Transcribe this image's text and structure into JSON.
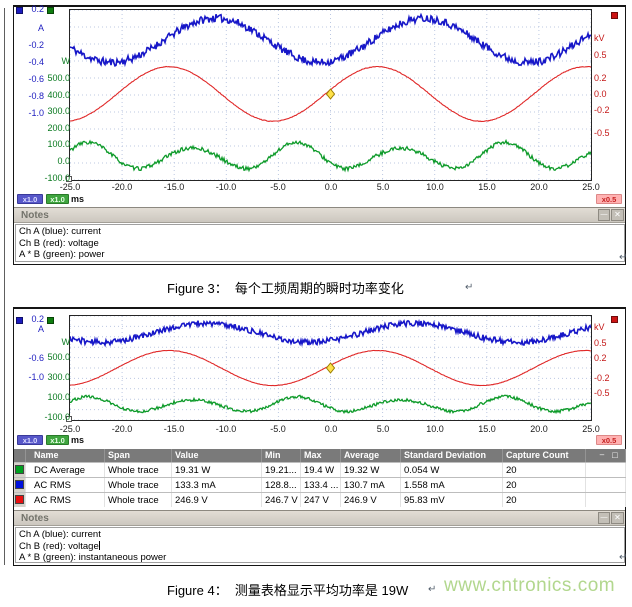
{
  "chart_data": [
    {
      "type": "line",
      "title": "PicoScope capture: instantaneous power over each mains cycle (Figure 3)",
      "x_unit": "ms",
      "x_range": [
        -25,
        25
      ],
      "x_ticks": [
        -25.0,
        -20.0,
        -15.0,
        -10.0,
        -5.0,
        0.0,
        5.0,
        10.0,
        15.0,
        20.0,
        25.0
      ],
      "axes": {
        "current": {
          "unit": "A",
          "visible_ticks": [
            0.2,
            -0.2,
            -0.4,
            -0.6,
            -0.8,
            -1.0
          ],
          "scale": "x1.0"
        },
        "power": {
          "unit": "W",
          "visible_ticks": [
            500,
            400,
            300,
            200,
            100,
            0,
            -100
          ],
          "scale": "x1.0"
        },
        "voltage": {
          "unit": "kV",
          "visible_ticks": [
            0.5,
            0.2,
            0.0,
            -0.2,
            -0.5
          ],
          "scale": "x0.5"
        }
      },
      "series": [
        {
          "name": "Ch A current (blue)",
          "axis": "current",
          "waveform": "noisy-sine",
          "offset": -0.15,
          "amplitude": 0.26,
          "period_ms": 20,
          "peak_at_ms": 9,
          "noise": 0.045,
          "color": "#1717c8"
        },
        {
          "name": "Ch B voltage (red)",
          "axis": "voltage",
          "waveform": "sine",
          "offset": 0,
          "amplitude": 0.35,
          "period_ms": 20,
          "peak_at_ms": 4.5,
          "noise": 0.004,
          "color": "#e02828"
        },
        {
          "name": "A * B power (green)",
          "axis": "power",
          "waveform": "noisy-sine",
          "offset": 25,
          "amplitude": 70,
          "period_ms": 10,
          "peak_at_ms": 6.75,
          "mod_depth": 0.25,
          "mod_period_ms": 20,
          "mod_peak_at_ms": 16.75,
          "noise": 12,
          "color": "#0c9a28"
        }
      ],
      "marker": {
        "shape": "diamond",
        "x_ms": 0,
        "axis": "voltage",
        "value": 0,
        "color": "#ffe24a"
      }
    },
    {
      "type": "line",
      "title": "PicoScope capture with measurement table, average power 19 W (Figure 4)",
      "x_unit": "ms",
      "x_range": [
        -25,
        25
      ],
      "x_ticks": [
        -25.0,
        -20.0,
        -15.0,
        -10.0,
        -5.0,
        0.0,
        5.0,
        10.0,
        15.0,
        20.0,
        25.0
      ],
      "axes": {
        "current": {
          "unit": "A",
          "visible_ticks": [
            0.2,
            -0.6,
            -1.0
          ],
          "scale": "x1.0"
        },
        "power": {
          "unit": "W",
          "visible_ticks": [
            500,
            300,
            100,
            -100
          ],
          "scale": "x1.0"
        },
        "voltage": {
          "unit": "kV",
          "visible_ticks": [
            0.5,
            0.2,
            -0.2,
            -0.5
          ],
          "scale": "x0.5"
        }
      },
      "series": [
        {
          "name": "Ch A current (blue)",
          "axis": "current",
          "waveform": "noisy-sine",
          "offset": -0.08,
          "amplitude": 0.2,
          "period_ms": 20,
          "peak_at_ms": 8,
          "noise": 0.06,
          "color": "#1717c8"
        },
        {
          "name": "Ch B voltage (red)",
          "axis": "voltage",
          "waveform": "sine",
          "offset": 0,
          "amplitude": 0.35,
          "period_ms": 20,
          "peak_at_ms": 4.5,
          "noise": 0.004,
          "color": "#e02828"
        },
        {
          "name": "A * B instantaneous power (green)",
          "axis": "power",
          "waveform": "noisy-sine",
          "offset": 22,
          "amplitude": 65,
          "period_ms": 10,
          "peak_at_ms": 6.75,
          "mod_depth": 0.25,
          "mod_period_ms": 20,
          "mod_peak_at_ms": 16.75,
          "noise": 15,
          "color": "#0c9a28"
        }
      ],
      "marker": {
        "shape": "diamond",
        "x_ms": 0,
        "axis": "voltage",
        "value": 0,
        "color": "#ffe24a"
      },
      "measurements": [
        {
          "name": "DC Average",
          "span": "Whole trace",
          "value": "19.31 W",
          "min": "19.21...",
          "max": "19.4 W",
          "average": "19.32 W",
          "standard_deviation": "0.054 W",
          "capture_count": "20"
        },
        {
          "name": "AC RMS",
          "span": "Whole trace",
          "value": "133.3 mA",
          "min": "128.8...",
          "max": "133.4 ...",
          "average": "130.7 mA",
          "standard_deviation": "1.558 mA",
          "capture_count": "20"
        },
        {
          "name": "AC RMS",
          "span": "Whole trace",
          "value": "246.9 V",
          "min": "246.7 V",
          "max": "247 V",
          "average": "246.9 V",
          "standard_deviation": "95.83 mV",
          "capture_count": "20"
        }
      ]
    }
  ],
  "figure3": {
    "scope": {
      "legend_top_value": "0.2",
      "axis_A": {
        "unit": "A",
        "ticks": [
          {
            "label": "-0.2",
            "value": -0.2
          },
          {
            "label": "-0.4",
            "value": -0.4
          },
          {
            "label": "-0.6",
            "value": -0.6
          },
          {
            "label": "-0.8",
            "value": -0.8
          },
          {
            "label": "-1.0",
            "value": -1.0
          }
        ]
      },
      "axis_W": {
        "unit": "W",
        "ticks": [
          {
            "label": "500.0",
            "value": 500
          },
          {
            "label": "400.0",
            "value": 400
          },
          {
            "label": "300.0",
            "value": 300
          },
          {
            "label": "200.0",
            "value": 200
          },
          {
            "label": "100.0",
            "value": 100
          },
          {
            "label": "0.0",
            "value": 0
          },
          {
            "label": "-100.0",
            "value": -100
          }
        ]
      },
      "axis_kV": {
        "unit": "kV",
        "ticks": [
          {
            "label": "0.5",
            "value": 0.5
          },
          {
            "label": "0.2",
            "value": 0.2
          },
          {
            "label": "0.0",
            "value": 0
          },
          {
            "label": "-0.2",
            "value": -0.2
          },
          {
            "label": "-0.5",
            "value": -0.5
          }
        ]
      },
      "axis_x": {
        "unit": "ms",
        "ticks": [
          {
            "label": "-25.0",
            "value": -25
          },
          {
            "label": "-20.0",
            "value": -20
          },
          {
            "label": "-15.0",
            "value": -15
          },
          {
            "label": "-10.0",
            "value": -10
          },
          {
            "label": "-5.0",
            "value": -5
          },
          {
            "label": "0.0",
            "value": 0
          },
          {
            "label": "5.0",
            "value": 5
          },
          {
            "label": "10.0",
            "value": 10
          },
          {
            "label": "15.0",
            "value": 15
          },
          {
            "label": "20.0",
            "value": 20
          },
          {
            "label": "25.0",
            "value": 25
          }
        ]
      },
      "badges": {
        "ch_a_scale": "x1.0",
        "power_scale": "x1.0",
        "time_unit": "ms",
        "ch_b_zoom": "x0.5"
      }
    },
    "notes": {
      "title": "Notes",
      "lines": [
        "Ch A (blue): current",
        "Ch B (red): voltage",
        "A * B (green): power"
      ],
      "minimize_label": "—",
      "close_label": "✕"
    },
    "caption": "Figure 3：  每个工频周期的瞬时功率变化",
    "return_mark": "↵"
  },
  "figure4": {
    "scope": {
      "legend_top_value": "0.2",
      "axis_A": {
        "unit": "A",
        "ticks": [
          {
            "label": "-0.6",
            "value": -0.6
          },
          {
            "label": "-1.0",
            "value": -1.0
          }
        ]
      },
      "axis_W": {
        "unit": "W",
        "ticks": [
          {
            "label": "500.0",
            "value": 500
          },
          {
            "label": "300.0",
            "value": 300
          },
          {
            "label": "100.0",
            "value": 100
          },
          {
            "label": "-100.0",
            "value": -100
          }
        ]
      },
      "axis_kV": {
        "unit": "kV",
        "ticks": [
          {
            "label": "0.5",
            "value": 0.5
          },
          {
            "label": "0.2",
            "value": 0.2
          },
          {
            "label": "-0.2",
            "value": -0.2
          },
          {
            "label": "-0.5",
            "value": -0.5
          }
        ]
      },
      "axis_x": {
        "unit": "ms",
        "ticks": [
          {
            "label": "-25.0",
            "value": -25
          },
          {
            "label": "-20.0",
            "value": -20
          },
          {
            "label": "-15.0",
            "value": -15
          },
          {
            "label": "-10.0",
            "value": -10
          },
          {
            "label": "-5.0",
            "value": -5
          },
          {
            "label": "0.0",
            "value": 0
          },
          {
            "label": "5.0",
            "value": 5
          },
          {
            "label": "10.0",
            "value": 10
          },
          {
            "label": "15.0",
            "value": 15
          },
          {
            "label": "20.0",
            "value": 20
          },
          {
            "label": "25.0",
            "value": 25
          }
        ]
      },
      "badges": {
        "ch_a_scale": "x1.0",
        "power_scale": "x1.0",
        "time_unit": "ms",
        "ch_b_zoom": "x0.5"
      }
    },
    "table": {
      "columns": [
        "Name",
        "Span",
        "Value",
        "Min",
        "Max",
        "Average",
        "Standard Deviation",
        "Capture Count"
      ],
      "minimize_label": "–",
      "restore_label": "□",
      "rows": [
        {
          "swatch": "#00a020",
          "name": "DC Average",
          "span": "Whole trace",
          "value": "19.31 W",
          "min": "19.21...",
          "max": "19.4 W",
          "average": "19.32 W",
          "std_dev": "0.054 W",
          "capture_count": "20"
        },
        {
          "swatch": "#0010dd",
          "name": "AC RMS",
          "span": "Whole trace",
          "value": "133.3 mA",
          "min": "128.8...",
          "max": "133.4 ...",
          "average": "130.7 mA",
          "std_dev": "1.558 mA",
          "capture_count": "20"
        },
        {
          "swatch": "#e81010",
          "name": "AC RMS",
          "span": "Whole trace",
          "value": "246.9 V",
          "min": "246.7 V",
          "max": "247 V",
          "average": "246.9 V",
          "std_dev": "95.83 mV",
          "capture_count": "20"
        }
      ]
    },
    "notes": {
      "title": "Notes",
      "lines": [
        "Ch A (blue): current",
        "Ch B (red): voltage",
        "A * B (green): instantaneous power"
      ],
      "minimize_label": "—",
      "close_label": "✕"
    },
    "caption": "Figure 4：  测量表格显示平均功率是 19W",
    "return_mark": "↵",
    "watermark": "www.cntronics.com"
  }
}
